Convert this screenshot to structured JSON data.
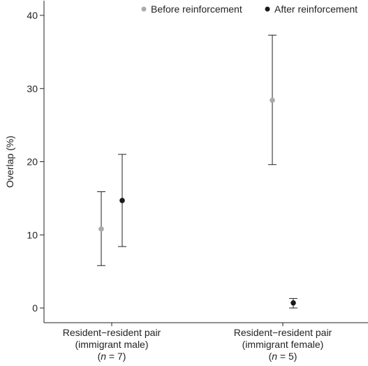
{
  "chart_data": {
    "type": "scatter",
    "title": "",
    "xlabel": "",
    "ylabel": "Overlap (%)",
    "ylim": [
      -2,
      42
    ],
    "yticks": [
      0,
      10,
      20,
      30,
      40
    ],
    "grid": false,
    "legend_position": "top-right",
    "categories": [
      {
        "lines": [
          "Resident−resident pair",
          "(immigrant male)"
        ],
        "n_prefix": "(",
        "n_symbol": "n",
        "n_rest": " = 7)"
      },
      {
        "lines": [
          "Resident−resident pair",
          "(immigrant female)"
        ],
        "n_prefix": "(",
        "n_symbol": "n",
        "n_rest": " = 5)"
      }
    ],
    "series": [
      {
        "name": "Before reinforcement",
        "color": "#aaaaaa",
        "values": [
          10.8,
          28.4
        ],
        "lower": [
          5.8,
          19.6
        ],
        "upper": [
          15.9,
          37.3
        ]
      },
      {
        "name": "After reinforcement",
        "color": "#1a1a1a",
        "values": [
          14.7,
          0.7
        ],
        "lower": [
          8.4,
          0.0
        ],
        "upper": [
          21.0,
          1.3
        ]
      }
    ]
  }
}
